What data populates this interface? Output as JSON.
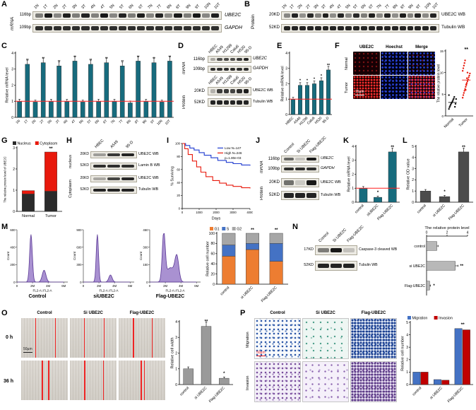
{
  "panels": {
    "A": {
      "letter": "A",
      "side": "mRNA",
      "lanes": [
        "1N",
        "1T",
        "2N",
        "2T",
        "3N",
        "3T",
        "4N",
        "4T",
        "5N",
        "5T",
        "6N",
        "6T",
        "7N",
        "7T",
        "8N",
        "8T",
        "9N",
        "9T",
        "10N",
        "10T"
      ],
      "row1": {
        "size": "116bp",
        "label": "UBE2C"
      },
      "row2": {
        "size": "109bp",
        "label": "GAPDH"
      },
      "gel1": {
        "bands": [
          0.5,
          0.95,
          0.45,
          0.92,
          0.5,
          0.9,
          0.48,
          0.95,
          0.45,
          0.9,
          0.5,
          0.93,
          0.46,
          0.9,
          0.44,
          0.94,
          0.5,
          0.95,
          0.45,
          0.92
        ]
      },
      "gel2": {
        "bands": [
          0.85,
          0.85,
          0.85,
          0.85,
          0.85,
          0.85,
          0.85,
          0.85,
          0.85,
          0.85,
          0.85,
          0.85,
          0.85,
          0.85,
          0.85,
          0.85,
          0.85,
          0.85,
          0.85,
          0.85
        ]
      }
    },
    "B": {
      "letter": "B",
      "side": "Protein",
      "lanes": [
        "1N",
        "1T",
        "2N",
        "2T",
        "3N",
        "3T",
        "4N",
        "4T",
        "5N",
        "5T",
        "6N",
        "6T",
        "7N",
        "7T",
        "8N",
        "8T",
        "9N",
        "9T",
        "10N",
        "10T"
      ],
      "row1": {
        "size": "20KD",
        "label": "UBE2C WB"
      },
      "row2": {
        "size": "52KD",
        "label": "Tubulin WB"
      },
      "gel1": {
        "bands": [
          0.45,
          0.9,
          0.4,
          0.88,
          0.48,
          0.92,
          0.42,
          0.9,
          0.45,
          0.88,
          0.5,
          0.92,
          0.44,
          0.9,
          0.42,
          0.93,
          0.48,
          0.9,
          0.44,
          0.9
        ]
      },
      "gel2": {
        "bands": [
          0.9,
          0.9,
          0.9,
          0.9,
          0.9,
          0.9,
          0.9,
          0.9,
          0.9,
          0.9,
          0.9,
          0.9,
          0.9,
          0.9,
          0.9,
          0.9,
          0.9,
          0.9,
          0.9,
          0.9
        ]
      }
    },
    "C": {
      "letter": "C"
    },
    "D": {
      "letter": "D",
      "lanes": [
        "HBEC",
        "A549",
        "H1299",
        "Calu6",
        "H520",
        "95-D"
      ],
      "mrna": {
        "side": "mRNA",
        "row1": {
          "size": "116bp",
          "label": "UBE2C"
        },
        "row2": {
          "size": "109bp",
          "label": "GAPDH"
        },
        "gel1": {
          "bands": [
            0.3,
            0.7,
            0.72,
            0.7,
            0.8,
            0.9
          ]
        },
        "gel2": {
          "bands": [
            0.85,
            0.85,
            0.85,
            0.85,
            0.85,
            0.85
          ]
        }
      },
      "protein": {
        "side": "Protein",
        "row1": {
          "size": "20KD",
          "label": "UBE2C WB"
        },
        "row2": {
          "size": "52KD",
          "label": "Tubulin WB"
        },
        "gel1": {
          "bands": [
            0.25,
            0.78,
            0.8,
            0.75,
            0.85,
            0.92
          ]
        },
        "gel2": {
          "bands": [
            0.9,
            0.9,
            0.9,
            0.9,
            0.9,
            0.9
          ]
        }
      }
    },
    "E": {
      "letter": "E"
    },
    "F": {
      "letter": "F",
      "col_headers": [
        "UBE2C",
        "Hoechst",
        "Merge"
      ],
      "row_labels": [
        "Normal",
        "Tumor"
      ],
      "scale": "15µm"
    },
    "G": {
      "letter": "G"
    },
    "H": {
      "letter": "H",
      "lanes": [
        "HBEC",
        "A549",
        "95-D"
      ],
      "side1": "nucleus",
      "side2": "Cytoplasm",
      "rows": [
        {
          "size": "20KD",
          "label": "UBE2C WB",
          "gel": {
            "bands": [
              0.35,
              0.8,
              0.9
            ]
          }
        },
        {
          "size": "52KD",
          "label": "Lamin B WB",
          "gel": {
            "bands": [
              0.85,
              0.85,
              0.85
            ]
          }
        },
        {
          "size": "20KD",
          "label": "UBE2C WB",
          "gel": {
            "bands": [
              0.3,
              0.75,
              0.88
            ]
          }
        },
        {
          "size": "52KD",
          "label": "Tubulin WB",
          "gel": {
            "bands": [
              0.9,
              0.9,
              0.9
            ]
          }
        }
      ]
    },
    "I": {
      "letter": "I"
    },
    "J": {
      "letter": "J",
      "lanes": [
        "Control",
        "Si UBE2C",
        "Flag-UBE2C"
      ],
      "mrna": {
        "side": "mRNA",
        "row1": {
          "size": "116bp",
          "label": "UBE2C"
        },
        "row2": {
          "size": "109bp",
          "label": "GAPDH"
        },
        "gel1": {
          "bands": [
            0.6,
            0.18,
            0.95
          ]
        },
        "gel2": {
          "bands": [
            0.85,
            0.85,
            0.85
          ]
        }
      },
      "protein": {
        "side": "Protein",
        "row1": {
          "size": "20KD",
          "label": "UBE2C WB"
        },
        "row2": {
          "size": "52KD",
          "label": "Tubulin WB"
        },
        "gel1": {
          "bands": [
            0.55,
            0.15,
            0.95
          ]
        },
        "gel2": {
          "bands": [
            0.9,
            0.9,
            0.9
          ]
        }
      }
    },
    "K": {
      "letter": "K"
    },
    "L": {
      "letter": "L"
    },
    "M": {
      "letter": "M",
      "flow": [
        {
          "title": "Control",
          "xlabel": "FL2-A::FL2-A",
          "ylabel": "Count",
          "xticks": [
            "0",
            "2M",
            "4M",
            "6M"
          ],
          "yticks": [
            "0",
            "200",
            "400",
            "600"
          ],
          "peaks": [
            {
              "c": 0.3,
              "w": 0.04,
              "h": 1
            },
            {
              "c": 0.58,
              "w": 0.055,
              "h": 0.25
            }
          ]
        },
        {
          "title": "siUBE2C",
          "xlabel": "FL2-A::FL2-A",
          "ylabel": "Count",
          "xticks": [
            "0",
            "2M",
            "4M",
            "6M"
          ],
          "yticks": [
            "0",
            "300",
            "600",
            "900"
          ],
          "peaks": [
            {
              "c": 0.3,
              "w": 0.035,
              "h": 1
            },
            {
              "c": 0.58,
              "w": 0.05,
              "h": 0.15
            }
          ]
        },
        {
          "title": "Flag-UBE2C",
          "xlabel": "FL2-A::FL2-A",
          "ylabel": "Count",
          "xticks": [
            "0",
            "2M",
            "4M",
            "6M"
          ],
          "yticks": [
            "0",
            "150",
            "300",
            "450"
          ],
          "peaks": [
            {
              "c": 0.3,
              "w": 0.045,
              "h": 1
            },
            {
              "c": 0.44,
              "w": 0.12,
              "h": 0.3
            },
            {
              "c": 0.58,
              "w": 0.06,
              "h": 0.5
            }
          ]
        }
      ]
    },
    "N": {
      "letter": "N",
      "lanes": [
        "Control",
        "Si UBE2C",
        "Flag-UBE2C"
      ],
      "row1": {
        "size": "17KD",
        "label": "Caspase-3 cleaved WB",
        "gel": {
          "bands": [
            0.5,
            0.95,
            0.18
          ]
        }
      },
      "row2": {
        "size": "52KD",
        "label": "Tubulin WB",
        "gel": {
          "bands": [
            0.9,
            0.9,
            0.9
          ]
        }
      }
    },
    "O": {
      "letter": "O",
      "col_headers": [
        "Control",
        "Si UBE2C",
        "Flag-UBE2C"
      ],
      "row_labels": [
        "0 h",
        "36 h"
      ],
      "scale": "50µm",
      "wounds": {
        "r0c0": [
          30,
          72
        ],
        "r0c1": [
          30,
          72
        ],
        "r0c2": [
          31,
          71
        ],
        "r1c0": [
          44,
          58
        ],
        "r1c1": [
          31,
          71
        ],
        "r1c2": [
          47,
          54
        ]
      }
    },
    "P": {
      "letter": "P",
      "col_headers": [
        "Control",
        "Si UBE2C",
        "Flag-UBE2C"
      ],
      "row_labels": [
        "Migration",
        "Invasion"
      ],
      "scale": "50µm"
    }
  },
  "chart_data": {
    "C": {
      "type": "bar",
      "ylabel": "Relative mRNA level",
      "ymax": 4,
      "yticks": [
        "0",
        "1",
        "2",
        "3",
        "4"
      ],
      "color": "#176b7d",
      "refline": 1,
      "cat_rot": true,
      "categories": [
        "1N",
        "1T",
        "2N",
        "2T",
        "3N",
        "3T",
        "4N",
        "4T",
        "5N",
        "5T",
        "6N",
        "6T",
        "7N",
        "7T",
        "8N",
        "8T",
        "9N",
        "9T",
        "10N",
        "10T"
      ],
      "values": [
        1.0,
        3.3,
        0.95,
        3.4,
        1.0,
        3.2,
        1.0,
        3.5,
        0.95,
        3.3,
        1.0,
        3.4,
        1.0,
        3.2,
        0.9,
        3.5,
        1.0,
        3.4,
        0.95,
        3.5
      ],
      "sig": [
        "",
        "**",
        "",
        "**",
        "",
        "**",
        "",
        "**",
        "",
        "**",
        "",
        "**",
        "",
        "**",
        "",
        "**",
        "",
        "**",
        "",
        "**"
      ]
    },
    "E": {
      "type": "bar",
      "ylabel": "Relative mRNA level",
      "ymax": 4,
      "yticks": [
        "0",
        "1",
        "2",
        "3",
        "4"
      ],
      "color": "#176b7d",
      "refline": 1,
      "cat_rot": true,
      "categories": [
        "HBEC",
        "A549",
        "H1299",
        "Calu6",
        "H520",
        "95-D"
      ],
      "values": [
        1.0,
        1.9,
        1.9,
        2.0,
        2.2,
        2.9
      ],
      "sig": [
        "",
        "*",
        "*",
        "*",
        "*",
        "**"
      ]
    },
    "F": {
      "type": "scatter",
      "ylabel": "The relative protein level",
      "ymax": 15,
      "yticks": [
        "0",
        "5",
        "10",
        "15"
      ],
      "sig": "**",
      "groups": [
        {
          "label": "Normal",
          "color": "#111111",
          "points": [
            1.6,
            2.0,
            2.3,
            2.6,
            2.9,
            3.1,
            3.4,
            3.7,
            4.0,
            4.4,
            2.1,
            2.8,
            3.9,
            4.8
          ]
        },
        {
          "label": "Tumor",
          "color": "#e8190c",
          "points": [
            4.2,
            4.8,
            5.3,
            5.8,
            6.2,
            6.7,
            7.1,
            7.6,
            8.0,
            8.4,
            8.9,
            9.3,
            9.8,
            10.4,
            11.0,
            11.6,
            12.2,
            12.8,
            6.0,
            7.3,
            8.7,
            10.0
          ]
        }
      ]
    },
    "G": {
      "type": "bar",
      "stacked": true,
      "ylabel": "The relative protein level of UBE2C",
      "ymax": 3,
      "yticks": [
        "0",
        "1",
        "2",
        "3"
      ],
      "cat_rot": false,
      "categories": [
        "Normal",
        "Tumor"
      ],
      "sig": [
        "",
        "**"
      ],
      "series": [
        {
          "name": "Nucleus",
          "color": "#2b2b2b",
          "values": [
            0.82,
            0.95
          ]
        },
        {
          "name": "Cytoplasm",
          "color": "#e8190c",
          "values": [
            0.16,
            1.85
          ]
        }
      ],
      "legend": [
        {
          "label": "Nucleus",
          "color": "#2b2b2b"
        },
        {
          "label": "Cytoplasm",
          "color": "#e8190c"
        }
      ]
    },
    "I": {
      "type": "line",
      "ylabel": "% Surviving",
      "xlabel": "Days",
      "ymax": 100,
      "xmax": 4000,
      "yticks": [
        0,
        20,
        40,
        60,
        80,
        100
      ],
      "xticks": [
        0,
        1000,
        2000,
        3000,
        4000
      ],
      "pvalue": "p=1.80e-03",
      "series": [
        {
          "label": "Low N=147",
          "color": "#1f3bd0",
          "points": [
            [
              0,
              100
            ],
            [
              200,
              97
            ],
            [
              450,
              93
            ],
            [
              700,
              90
            ],
            [
              1000,
              86
            ],
            [
              1300,
              82
            ],
            [
              1700,
              78
            ],
            [
              2100,
              74
            ],
            [
              2600,
              71
            ],
            [
              3000,
              69
            ],
            [
              3500,
              67
            ],
            [
              4000,
              66
            ]
          ]
        },
        {
          "label": "High N=246",
          "color": "#e8190c",
          "points": [
            [
              0,
              100
            ],
            [
              150,
              92
            ],
            [
              350,
              83
            ],
            [
              600,
              73
            ],
            [
              850,
              64
            ],
            [
              1100,
              56
            ],
            [
              1400,
              49
            ],
            [
              1800,
              43
            ],
            [
              2200,
              39
            ],
            [
              2600,
              36
            ],
            [
              3000,
              34
            ],
            [
              3500,
              32
            ],
            [
              4000,
              31
            ]
          ]
        }
      ]
    },
    "K": {
      "type": "bar",
      "ylabel": "Relative mRNA level",
      "ymax": 4,
      "yticks": [
        "0",
        "1",
        "2",
        "3",
        "4"
      ],
      "color": "#176b7d",
      "refline": 1,
      "cat_rot": true,
      "categories": [
        "control",
        "siUBE2C",
        "Flag-UBE2C"
      ],
      "values": [
        1.0,
        0.35,
        3.6
      ],
      "sig": [
        "",
        "*",
        "**"
      ]
    },
    "L": {
      "type": "bar",
      "ylabel": "Relative OD value",
      "ymax": 5,
      "yticks": [
        "0",
        "1",
        "2",
        "3",
        "4",
        "5"
      ],
      "color": "#4c4c4c",
      "cat_rot": true,
      "categories": [
        "control",
        "si UBE2C",
        "Flag-UBE2C"
      ],
      "values": [
        1.0,
        0.5,
        4.5
      ],
      "sig": [
        "",
        "*",
        "**"
      ]
    },
    "M": {
      "type": "bar",
      "stacked": true,
      "ylabel": "Relative cell number",
      "ymax": 100,
      "yticks": [
        "0",
        "20",
        "40",
        "60",
        "80",
        "100"
      ],
      "cat_rot": true,
      "categories": [
        "control",
        "si UBE2C",
        "Flag-UBE2C"
      ],
      "sig": [
        "",
        "**",
        "**"
      ],
      "series": [
        {
          "name": "G1",
          "color": "#ed7d31",
          "values": [
            55,
            68,
            45
          ]
        },
        {
          "name": "S",
          "color": "#4472c4",
          "values": [
            22,
            12,
            35
          ]
        },
        {
          "name": "G2",
          "color": "#a6a6a6",
          "values": [
            23,
            20,
            20
          ]
        }
      ],
      "legend": [
        {
          "label": "G1",
          "color": "#ed7d31"
        },
        {
          "label": "S",
          "color": "#4472c4"
        },
        {
          "label": "G2",
          "color": "#a6a6a6"
        }
      ]
    },
    "N": {
      "type": "bar",
      "axis_label": "The relative protein level",
      "xmax": 4,
      "xticks": [
        "0",
        "2",
        "4"
      ],
      "color": "#b8b8b8",
      "categories": [
        "control",
        "si UBE2C",
        "Flag-UBE2C"
      ],
      "values": [
        1.0,
        2.8,
        0.3
      ],
      "sig": [
        "",
        "**",
        "*"
      ]
    },
    "O": {
      "type": "bar",
      "ylabel": "Relative cell width",
      "ymax": 4,
      "yticks": [
        "0",
        "1",
        "2",
        "3",
        "4"
      ],
      "color": "#9a9a9a",
      "cat_rot": true,
      "categories": [
        "control",
        "si UBE2C",
        "Flag-UBE2C"
      ],
      "values": [
        1.0,
        3.7,
        0.4
      ],
      "sig": [
        "",
        "**",
        "*"
      ]
    },
    "P": {
      "type": "bar",
      "ylabel": "Relative cell number",
      "ymax": 5,
      "yticks": [
        "0",
        "1",
        "2",
        "3",
        "4",
        "5"
      ],
      "cat_rot": true,
      "categories": [
        "control",
        "si UBE2C",
        "Flag-UBE2C"
      ],
      "sig": [
        "",
        "",
        "**"
      ],
      "series": [
        {
          "name": "Migration",
          "color": "#4472c4",
          "values": [
            1.0,
            0.4,
            4.5
          ]
        },
        {
          "name": "Invasion",
          "color": "#c00000",
          "values": [
            1.0,
            0.35,
            4.4
          ]
        }
      ],
      "legend": [
        {
          "label": "Migration",
          "color": "#4472c4"
        },
        {
          "label": "Invasion",
          "color": "#c00000"
        }
      ]
    }
  }
}
